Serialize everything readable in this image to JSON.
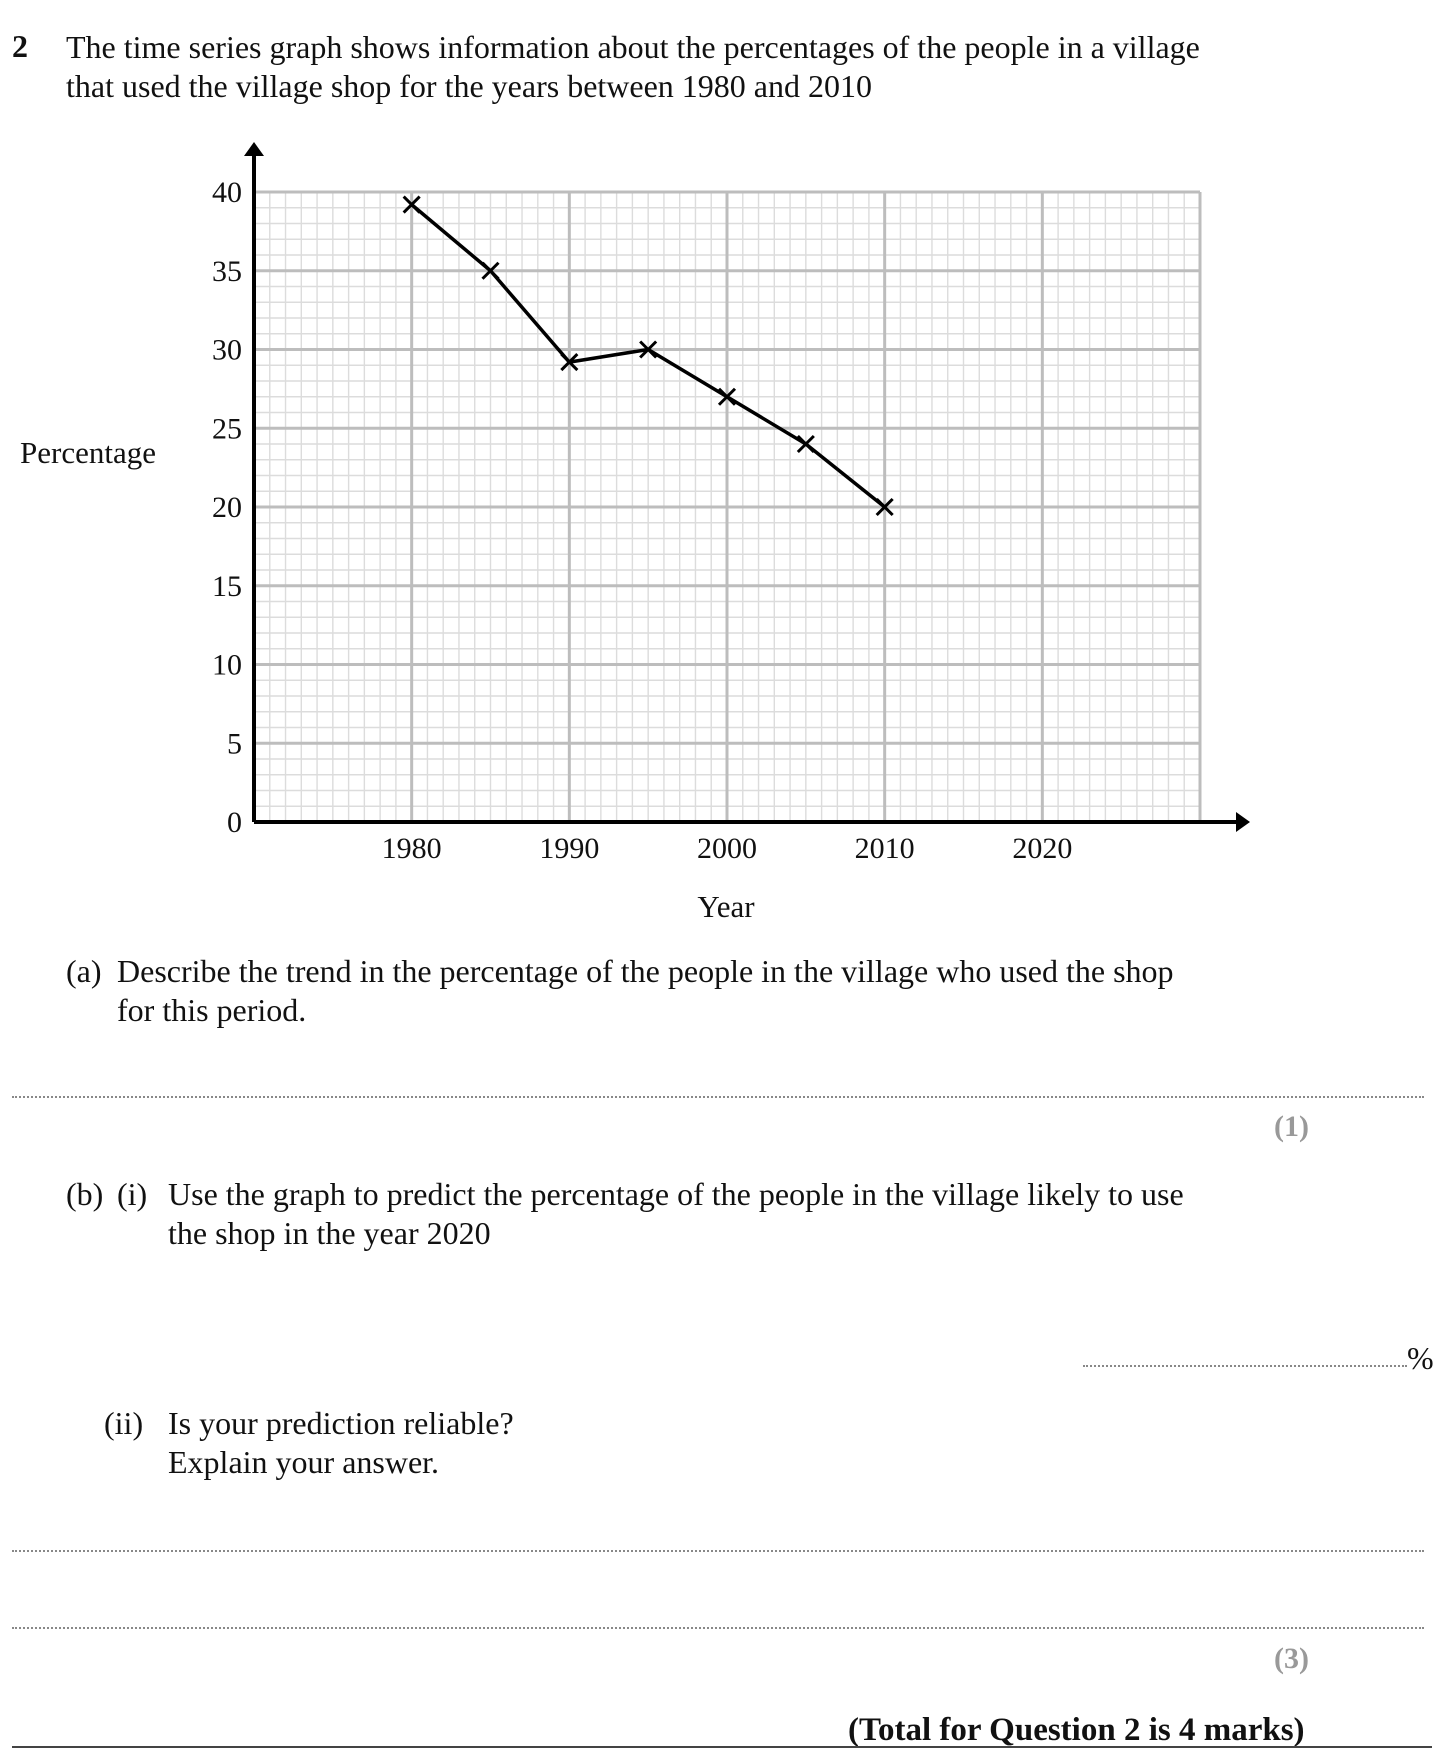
{
  "question": {
    "number": "2",
    "intro_line1": "The time series graph shows information about the percentages of the people in a village",
    "intro_line2": "that used the village shop for the years between 1980 and 2010"
  },
  "chart_data": {
    "type": "line",
    "xlabel": "Year",
    "ylabel": "Percentage",
    "x_ticks": [
      "1980",
      "1990",
      "2000",
      "2010",
      "2020"
    ],
    "y_ticks": [
      "0",
      "5",
      "10",
      "15",
      "20",
      "25",
      "30",
      "35",
      "40"
    ],
    "xlim": [
      1970,
      2030
    ],
    "ylim": [
      0,
      40
    ],
    "grid": true,
    "series": [
      {
        "x": [
          1980,
          1985,
          1990,
          1995,
          2000,
          2005,
          2010
        ],
        "y": [
          39.2,
          35,
          29.2,
          30,
          27,
          24,
          20
        ],
        "marker": "x",
        "color": "#000000"
      }
    ]
  },
  "part_a": {
    "label": "(a)",
    "line1": "Describe the trend in the percentage of the people in the village who used the shop",
    "line2": "for this period.",
    "marks": "(1)"
  },
  "part_b": {
    "label": "(b)",
    "i": {
      "label": "(i)",
      "line1": "Use the graph to predict the percentage of the people in the village likely to use",
      "line2": "the shop in the year 2020",
      "unit": "%"
    },
    "ii": {
      "label": "(ii)",
      "line1": "Is your prediction reliable?",
      "line2": "Explain your answer.",
      "marks": "(3)"
    }
  },
  "total": "(Total for Question 2 is 4 marks)"
}
